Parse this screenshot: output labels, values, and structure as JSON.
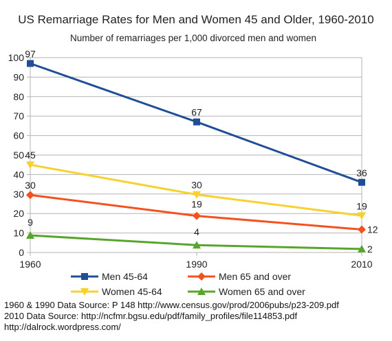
{
  "chart_data": {
    "type": "line",
    "title": "US Remarriage Rates for Men and Women 45 and Older, 1960-2010",
    "subtitle": "Number of remarriages per 1,000 divorced men and women",
    "x": [
      1960,
      1990,
      2010
    ],
    "ylim": [
      0,
      100
    ],
    "yticks": [
      0,
      10,
      20,
      30,
      40,
      50,
      60,
      70,
      80,
      90,
      100
    ],
    "grid": "horizontal",
    "legend_position": "bottom",
    "series": [
      {
        "name": "Men 45-64",
        "values": [
          97,
          67,
          36
        ],
        "labels": [
          "97",
          "67",
          "36"
        ],
        "color": "#1f4e96",
        "marker": "square"
      },
      {
        "name": "Men 65 and over",
        "values": [
          29.5,
          18.8,
          11.8
        ],
        "labels": [
          "30",
          "19",
          "12"
        ],
        "color": "#f4511e",
        "marker": "diamond"
      },
      {
        "name": "Women 45-64",
        "values": [
          45,
          29.7,
          18.9
        ],
        "labels": [
          "45",
          "30",
          "19"
        ],
        "color": "#f7d12e",
        "marker": "triangle-down"
      },
      {
        "name": "Women 65 and over",
        "values": [
          8.8,
          3.8,
          1.8
        ],
        "labels": [
          "9",
          "4",
          "2"
        ],
        "color": "#57a52a",
        "marker": "triangle-up"
      }
    ]
  },
  "sources": [
    "1960 & 1990 Data Source:  P 148 http://www.census.gov/prod/2006pubs/p23-209.pdf",
    "2010 Data Source:  http://ncfmr.bgsu.edu/pdf/family_profiles/file114853.pdf",
    "http://dalrock.wordpress.com/"
  ]
}
